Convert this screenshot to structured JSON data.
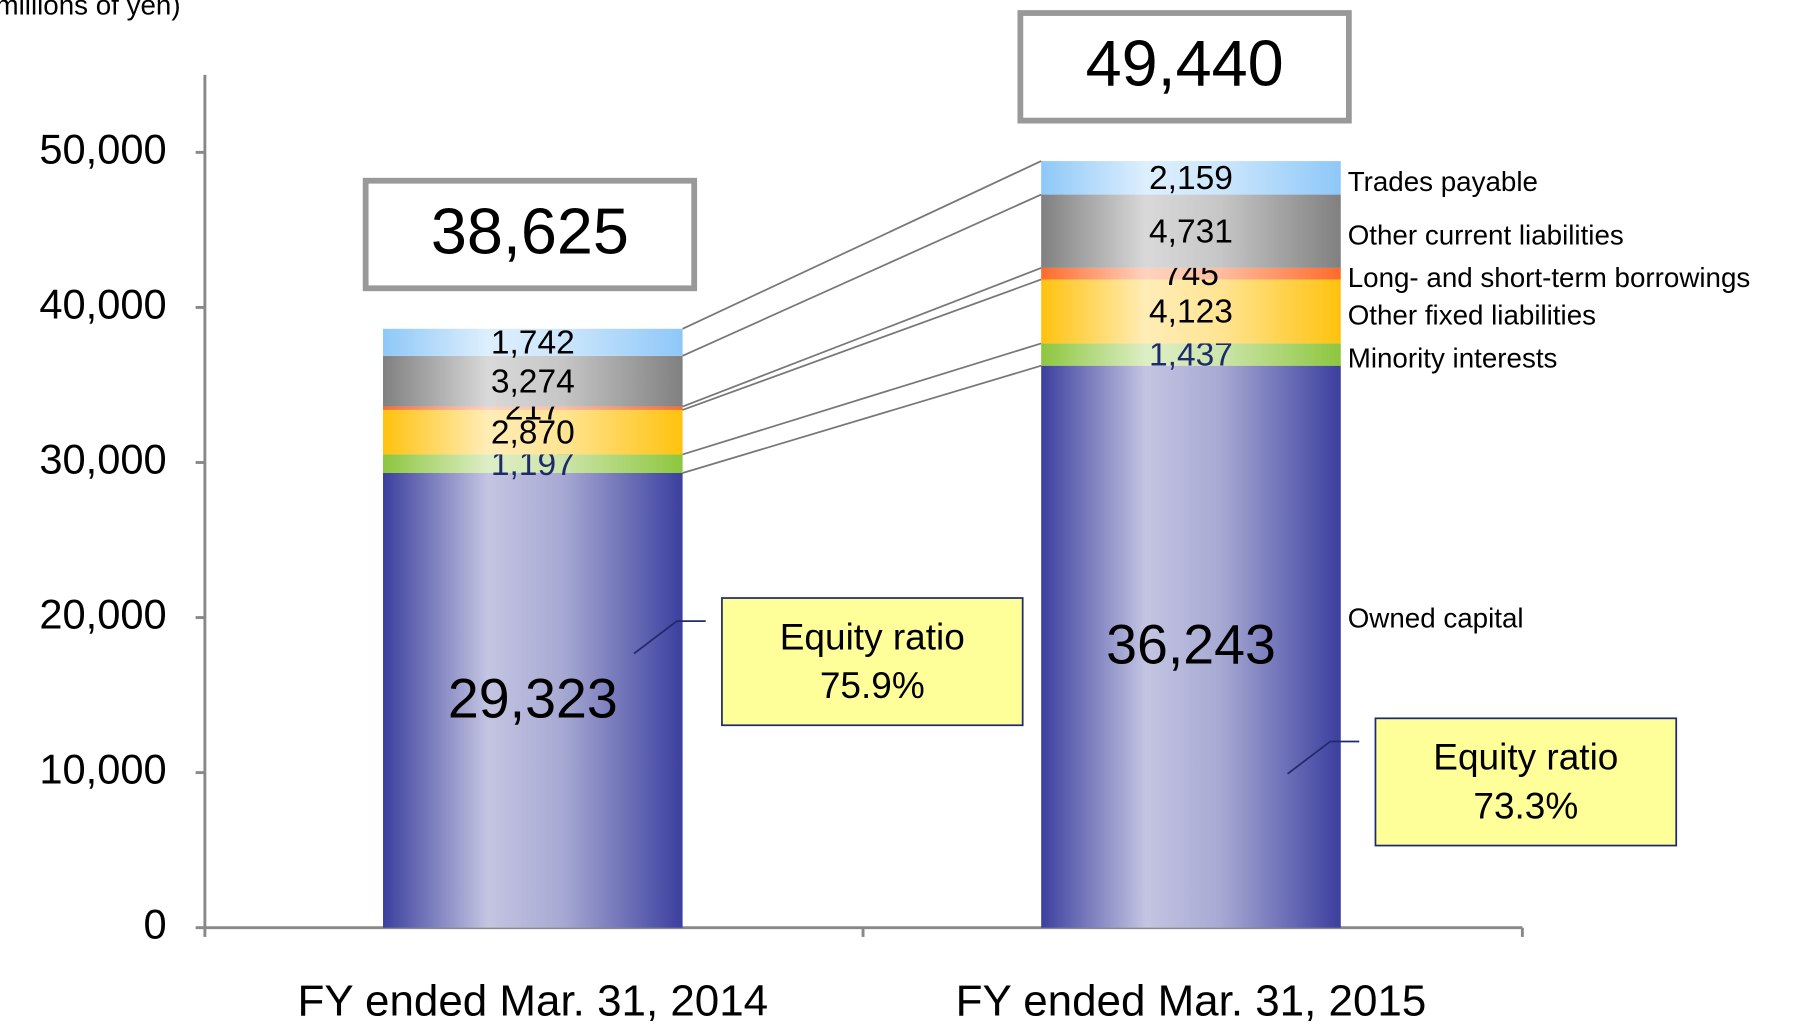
{
  "chart_data": {
    "type": "bar",
    "stacked": true,
    "y_label": "(millions of yen)",
    "categories": [
      "FY ended Mar. 31, 2014",
      "FY ended Mar. 31, 2015"
    ],
    "series": [
      {
        "name": "Owned capital",
        "color": "#3b3f9e",
        "values": [
          29323,
          36243
        ],
        "value_labels": [
          "29,323",
          "36,243"
        ]
      },
      {
        "name": "Minority interests",
        "color": "#8dc63f",
        "values": [
          1197,
          1437
        ],
        "value_labels": [
          "1,197",
          "1,437"
        ]
      },
      {
        "name": "Other fixed liabilities",
        "color": "#ffc20e",
        "values": [
          2870,
          4123
        ],
        "value_labels": [
          "2,870",
          "4,123"
        ]
      },
      {
        "name": "Long- and short-term borrowings",
        "color": "#ff6a2a",
        "values": [
          217,
          745
        ]
      },
      {
        "name": "Other current liabilities",
        "color": "#808080",
        "values": [
          3274,
          4731
        ],
        "value_labels": [
          "3,274",
          "4,731"
        ]
      },
      {
        "name": "Trades payable",
        "color": "#8ec8f8",
        "values": [
          1742,
          2159
        ],
        "value_labels": [
          "1,742",
          "2,159"
        ]
      }
    ],
    "totals": [
      38625,
      49440
    ],
    "total_labels": [
      "38,625",
      "49,440"
    ],
    "equity_ratio": {
      "label": "Equity ratio",
      "values": [
        75.9,
        73.3
      ],
      "value_labels": [
        "75.9%",
        "73.3%"
      ]
    },
    "ylim": [
      0,
      55000
    ],
    "yticks": [
      0,
      {
        "value": 10000,
        "label": "10,000"
      },
      {
        "value": 20000,
        "label": "20,000"
      },
      {
        "value": 30000,
        "label": "30,000"
      },
      {
        "value": 40000,
        "label": "40,000"
      },
      {
        "value": 50000,
        "label": "50,000"
      }
    ]
  }
}
